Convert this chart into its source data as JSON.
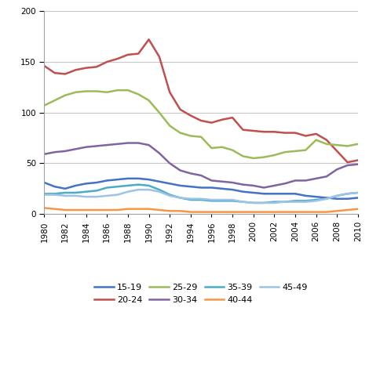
{
  "years": [
    1980,
    1981,
    1982,
    1983,
    1984,
    1985,
    1986,
    1987,
    1988,
    1989,
    1990,
    1991,
    1992,
    1993,
    1994,
    1995,
    1996,
    1997,
    1998,
    1999,
    2000,
    2001,
    2002,
    2003,
    2004,
    2005,
    2006,
    2007,
    2008,
    2009,
    2010
  ],
  "series": {
    "15-19": [
      31,
      27,
      25,
      28,
      30,
      31,
      33,
      34,
      35,
      35,
      34,
      32,
      30,
      28,
      27,
      26,
      26,
      25,
      24,
      22,
      21,
      20,
      20,
      20,
      20,
      18,
      17,
      16,
      15,
      15,
      16
    ],
    "20-24": [
      146,
      139,
      138,
      142,
      144,
      145,
      150,
      153,
      157,
      158,
      172,
      155,
      120,
      103,
      97,
      92,
      90,
      93,
      95,
      83,
      82,
      81,
      81,
      80,
      80,
      77,
      79,
      73,
      62,
      51,
      53
    ],
    "25-29": [
      107,
      112,
      117,
      120,
      121,
      121,
      120,
      122,
      122,
      118,
      112,
      100,
      87,
      80,
      77,
      76,
      65,
      66,
      63,
      57,
      55,
      56,
      58,
      61,
      62,
      63,
      73,
      69,
      68,
      67,
      69
    ],
    "30-34": [
      59,
      61,
      62,
      64,
      66,
      67,
      68,
      69,
      70,
      70,
      68,
      60,
      50,
      43,
      40,
      38,
      33,
      32,
      31,
      29,
      28,
      26,
      28,
      30,
      33,
      33,
      35,
      37,
      44,
      48,
      49
    ],
    "35-39": [
      20,
      20,
      21,
      21,
      22,
      23,
      26,
      27,
      28,
      29,
      28,
      24,
      19,
      16,
      14,
      14,
      13,
      13,
      13,
      12,
      11,
      11,
      12,
      12,
      13,
      13,
      14,
      15,
      18,
      20,
      21
    ],
    "40-44": [
      6,
      5,
      4,
      4,
      4,
      4,
      4,
      4,
      5,
      5,
      5,
      4,
      3,
      3,
      2,
      2,
      2,
      2,
      2,
      2,
      2,
      2,
      2,
      2,
      2,
      2,
      2,
      2,
      3,
      4,
      5
    ],
    "45-49": [
      19,
      19,
      18,
      18,
      17,
      17,
      18,
      19,
      22,
      24,
      24,
      22,
      18,
      16,
      15,
      15,
      14,
      14,
      14,
      12,
      11,
      11,
      11,
      12,
      12,
      12,
      13,
      15,
      18,
      20,
      21
    ]
  },
  "series_order": [
    "15-19",
    "20-24",
    "25-29",
    "30-34",
    "35-39",
    "40-44",
    "45-49"
  ],
  "colors": {
    "15-19": "#4472C4",
    "20-24": "#C0504D",
    "25-29": "#9BBB59",
    "30-34": "#8064A2",
    "35-39": "#4BACC6",
    "40-44": "#F79646",
    "45-49": "#9DC3E6"
  },
  "ylim": [
    0,
    200
  ],
  "yticks": [
    0,
    50,
    100,
    150,
    200
  ],
  "xlim": [
    1980,
    2010
  ],
  "xticks": [
    1980,
    1982,
    1984,
    1986,
    1988,
    1990,
    1992,
    1994,
    1996,
    1998,
    2000,
    2002,
    2004,
    2006,
    2008,
    2010
  ],
  "background_color": "#ffffff",
  "grid_color": "#C8C8C8",
  "legend_ncol": 4,
  "linewidth": 1.8
}
